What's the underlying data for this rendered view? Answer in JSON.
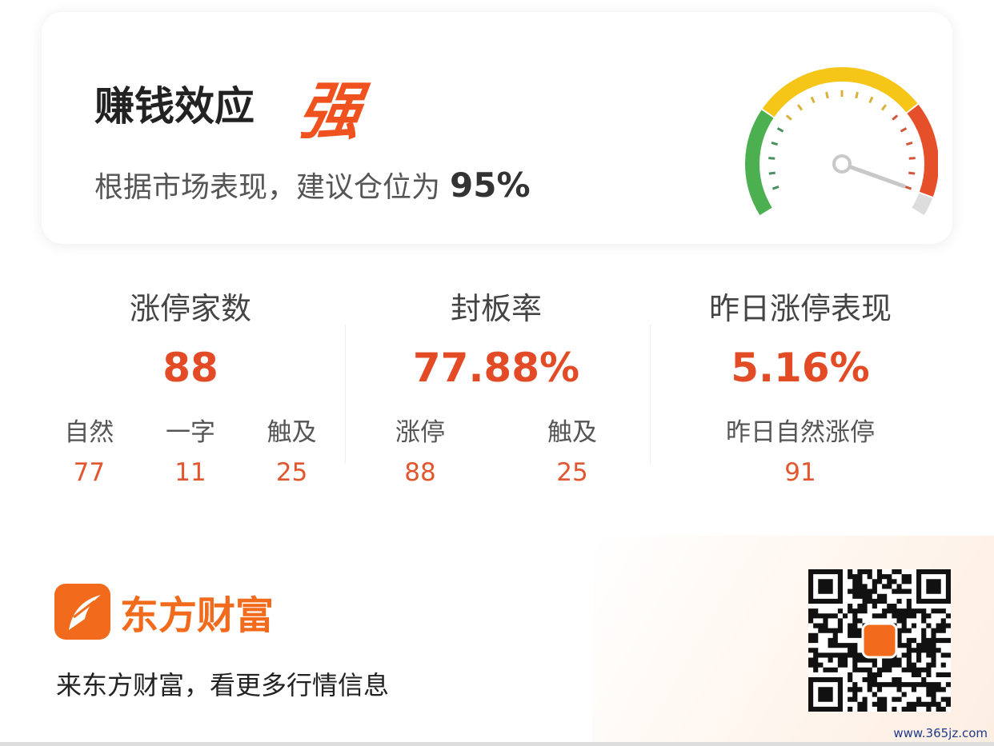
{
  "card": {
    "title": "赚钱效应",
    "level": "强",
    "advice_prefix": "根据市场表现，建议仓位为",
    "position": "95%",
    "gauge": {
      "value_percent": 95,
      "colors": {
        "green": "#4caf50",
        "yellow": "#f5c518",
        "red": "#e5502a",
        "grey": "#dddddd",
        "needle": "#c8c8c8"
      }
    }
  },
  "stats": [
    {
      "label": "涨停家数",
      "value": "88",
      "subs": [
        {
          "label": "自然",
          "value": "77"
        },
        {
          "label": "一字",
          "value": "11"
        },
        {
          "label": "触及",
          "value": "25"
        }
      ]
    },
    {
      "label": "封板率",
      "value": "77.88%",
      "subs": [
        {
          "label": "涨停",
          "value": "88"
        },
        {
          "label": "触及",
          "value": "25"
        }
      ]
    },
    {
      "label": "昨日涨停表现",
      "value": "5.16%",
      "subs": [
        {
          "label": "昨日自然涨停",
          "value": "91"
        }
      ]
    }
  ],
  "footer": {
    "brand": "东方财富",
    "slogan": "来东方财富，看更多行情信息",
    "watermark": "www.365jz.com",
    "accent": "#f26b1d"
  }
}
